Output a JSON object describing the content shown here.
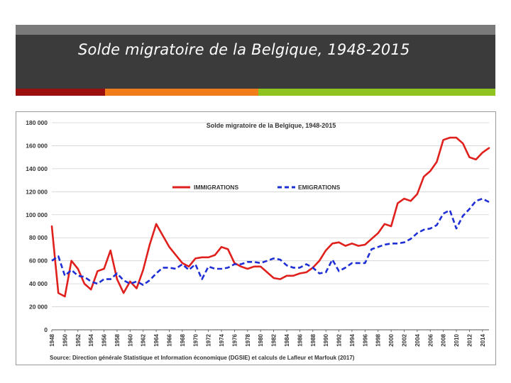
{
  "slide": {
    "title": "Solde migratoire de la Belgique, 1948-2015",
    "accent_colors": [
      "#9b0f0f",
      "#f07d1a",
      "#8fc31f"
    ]
  },
  "chart_data": {
    "type": "line",
    "title": "Solde migratoire de la Belgique, 1948-2015",
    "xlabel": "",
    "ylabel": "",
    "ylim": [
      0,
      180000
    ],
    "yticks": [
      0,
      20000,
      40000,
      60000,
      80000,
      100000,
      120000,
      140000,
      160000,
      180000
    ],
    "ytick_labels": [
      "0",
      "20 000",
      "40 000",
      "60 000",
      "80 000",
      "100 000",
      "120 000",
      "140 000",
      "160 000",
      "180 000"
    ],
    "xlim": [
      1948,
      2015
    ],
    "xtick_labels": [
      "1948",
      "1950",
      "1952",
      "1954",
      "1956",
      "1958",
      "1960",
      "1962",
      "1964",
      "1966",
      "1968",
      "1970",
      "1972",
      "1974",
      "1976",
      "1978",
      "1980",
      "1982",
      "1984",
      "1986",
      "1988",
      "1990",
      "1992",
      "1994",
      "1996",
      "1998",
      "2000",
      "2002",
      "2004",
      "2006",
      "2008",
      "2010",
      "2012",
      "2014"
    ],
    "grid": true,
    "legend_position": "top-center",
    "source": "Source: Direction générale Statistique et Information économique (DGSIE) et calculs de Lafleur et Marfouk (2017)",
    "x": [
      1948,
      1949,
      1950,
      1951,
      1952,
      1953,
      1954,
      1955,
      1956,
      1957,
      1958,
      1959,
      1960,
      1961,
      1962,
      1963,
      1964,
      1965,
      1966,
      1967,
      1968,
      1969,
      1970,
      1971,
      1972,
      1973,
      1974,
      1975,
      1976,
      1977,
      1978,
      1979,
      1980,
      1981,
      1982,
      1983,
      1984,
      1985,
      1986,
      1987,
      1988,
      1989,
      1990,
      1991,
      1992,
      1993,
      1994,
      1995,
      1996,
      1997,
      1998,
      1999,
      2000,
      2001,
      2002,
      2003,
      2004,
      2005,
      2006,
      2007,
      2008,
      2009,
      2010,
      2011,
      2012,
      2013,
      2014,
      2015
    ],
    "series": [
      {
        "name": "IMMIGRATIONS",
        "color": "#e0201c",
        "style": "solid",
        "values": [
          90000,
          32000,
          29000,
          60000,
          53000,
          40000,
          35000,
          51000,
          53000,
          69000,
          44000,
          32000,
          42000,
          36000,
          52000,
          74000,
          92000,
          82000,
          72000,
          65000,
          58000,
          55000,
          62000,
          63000,
          63000,
          65000,
          72000,
          70000,
          58000,
          55000,
          53000,
          55000,
          55000,
          50000,
          45000,
          44000,
          47000,
          47000,
          49000,
          50000,
          54000,
          60000,
          69000,
          75000,
          76000,
          73000,
          75000,
          73000,
          74000,
          79000,
          84000,
          92000,
          90000,
          110000,
          114000,
          112000,
          118000,
          133000,
          138000,
          146000,
          165000,
          167000,
          167000,
          162000,
          150000,
          148000,
          154000,
          158000
        ]
      },
      {
        "name": "EMIGRATIONS",
        "color": "#1f2fd6",
        "style": "dashed",
        "values": [
          60000,
          64000,
          47000,
          52000,
          47000,
          46000,
          42000,
          40000,
          44000,
          44000,
          49000,
          43000,
          40000,
          42000,
          39000,
          43000,
          49000,
          54000,
          54000,
          53000,
          57000,
          52000,
          57000,
          44000,
          55000,
          53000,
          53000,
          54000,
          57000,
          57000,
          59000,
          59000,
          58000,
          60000,
          62000,
          61000,
          56000,
          54000,
          54000,
          57000,
          54000,
          49000,
          50000,
          61000,
          51000,
          54000,
          58000,
          58000,
          58000,
          70000,
          72000,
          74000,
          75000,
          75000,
          76000,
          79000,
          84000,
          87000,
          88000,
          91000,
          101000,
          104000,
          88000,
          99000,
          105000,
          112000,
          114000,
          111000
        ]
      }
    ]
  }
}
